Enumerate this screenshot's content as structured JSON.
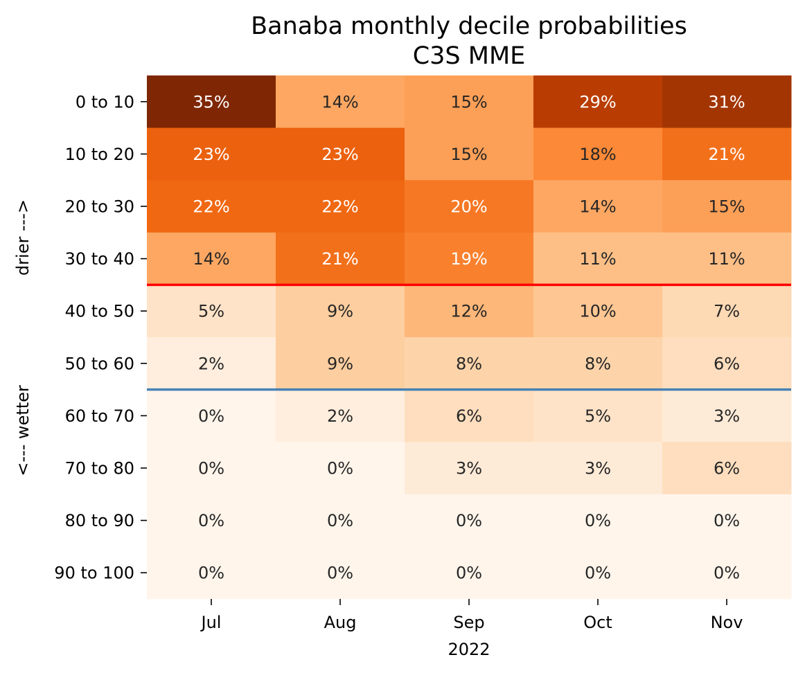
{
  "chart_data": {
    "type": "heatmap",
    "title": "Banaba monthly decile probabilities",
    "subtitle": "C3S MME",
    "xlabel": "2022",
    "ylabel_top": "drier --->",
    "ylabel_bottom": "<--- wetter",
    "columns": [
      "Jul",
      "Aug",
      "Sep",
      "Oct",
      "Nov"
    ],
    "rows": [
      "0 to 10",
      "10 to 20",
      "20 to 30",
      "30 to 40",
      "40 to 50",
      "50 to 60",
      "60 to 70",
      "70 to 80",
      "80 to 90",
      "90 to 100"
    ],
    "values": [
      [
        35,
        14,
        15,
        29,
        31
      ],
      [
        23,
        23,
        15,
        18,
        21
      ],
      [
        22,
        22,
        20,
        14,
        15
      ],
      [
        14,
        21,
        19,
        11,
        11
      ],
      [
        5,
        9,
        12,
        10,
        7
      ],
      [
        2,
        9,
        8,
        8,
        6
      ],
      [
        0,
        2,
        6,
        5,
        3
      ],
      [
        0,
        0,
        3,
        3,
        6
      ],
      [
        0,
        0,
        0,
        0,
        0
      ],
      [
        0,
        0,
        0,
        0,
        0
      ]
    ],
    "value_suffix": "%",
    "colormap": "Oranges",
    "color_range": [
      0,
      35
    ],
    "separator_lines": [
      {
        "after_row": "30 to 40",
        "color": "#ff0000"
      },
      {
        "after_row": "50 to 60",
        "color": "#4682b4"
      }
    ]
  }
}
